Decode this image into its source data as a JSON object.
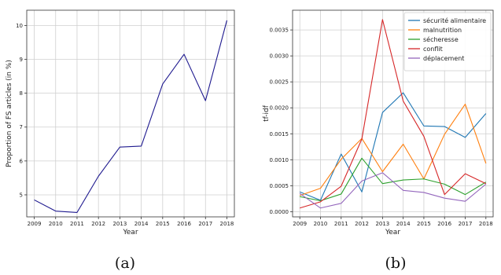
{
  "captions": {
    "a": "(a)",
    "b": "(b)"
  },
  "chart_data": [
    {
      "type": "line",
      "xlabel": "Year",
      "ylabel": "Proportion of FS articles (in %)",
      "x": [
        2009,
        2010,
        2011,
        2012,
        2013,
        2014,
        2015,
        2016,
        2017,
        2018
      ],
      "xticks": [
        "2009",
        "2010",
        "2011",
        "2012",
        "2013",
        "2014",
        "2015",
        "2016",
        "2017",
        "2018"
      ],
      "yticks": [
        "5",
        "6",
        "7",
        "8",
        "9",
        "10"
      ],
      "ylim": [
        4.35,
        10.45
      ],
      "grid": true,
      "series": [
        {
          "color": "#1f1a8f",
          "values": [
            4.85,
            4.52,
            4.48,
            5.55,
            6.41,
            6.44,
            8.27,
            9.15,
            7.78,
            10.15
          ]
        }
      ]
    },
    {
      "type": "line",
      "xlabel": "Year",
      "ylabel": "tf-idf",
      "x": [
        2009,
        2010,
        2011,
        2012,
        2013,
        2014,
        2015,
        2016,
        2017,
        2018
      ],
      "xticks": [
        "2009",
        "2010",
        "2011",
        "2012",
        "2013",
        "2014",
        "2015",
        "2016",
        "2017",
        "2018"
      ],
      "yticks": [
        "0.0000",
        "0.0005",
        "0.0010",
        "0.0015",
        "0.0020",
        "0.0025",
        "0.0030",
        "0.0035"
      ],
      "ylim": [
        -0.0001,
        0.00388
      ],
      "grid": true,
      "legend": "top-right",
      "series": [
        {
          "name": "sécurité alimentaire",
          "color": "#1f77b4",
          "values": [
            0.00038,
            0.00022,
            0.00111,
            0.00038,
            0.00191,
            0.00229,
            0.00165,
            0.00164,
            0.00143,
            0.00189
          ]
        },
        {
          "name": "malnutrition",
          "color": "#ff7f0e",
          "values": [
            0.00031,
            0.00045,
            0.00101,
            0.00141,
            0.00077,
            0.0013,
            0.00063,
            0.00149,
            0.00207,
            0.00093
          ]
        },
        {
          "name": "sécheresse",
          "color": "#2ca02c",
          "values": [
            0.00029,
            0.00021,
            0.00034,
            0.00103,
            0.00054,
            0.00061,
            0.00063,
            0.00053,
            0.00033,
            0.00057
          ]
        },
        {
          "name": "conflit",
          "color": "#d62728",
          "values": [
            7e-05,
            0.00019,
            0.00049,
            0.0014,
            0.0037,
            0.00213,
            0.00145,
            0.00033,
            0.00073,
            0.00054
          ]
        },
        {
          "name": "déplacement",
          "color": "#9467bd",
          "values": [
            0.00035,
            7e-05,
            0.00016,
            0.00059,
            0.00075,
            0.00041,
            0.00037,
            0.00026,
            0.0002,
            0.00053
          ]
        }
      ]
    }
  ]
}
